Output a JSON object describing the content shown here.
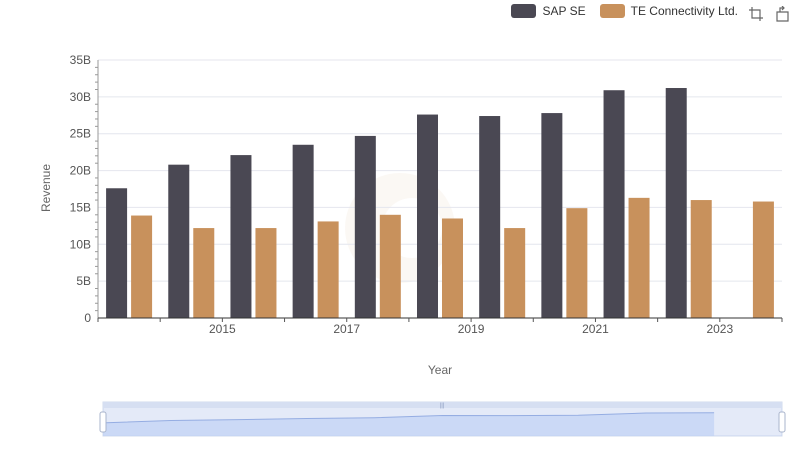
{
  "chart_data": {
    "type": "bar",
    "x": [
      2014,
      2015,
      2016,
      2017,
      2018,
      2019,
      2020,
      2021,
      2022,
      2023,
      2024
    ],
    "x_tick_labels": [
      "2015",
      "2017",
      "2019",
      "2021",
      "2023"
    ],
    "y_tick_labels": [
      "0",
      "5B",
      "10B",
      "15B",
      "20B",
      "25B",
      "30B",
      "35B"
    ],
    "series": [
      {
        "name": "SAP SE",
        "color": "#4a4853",
        "values": [
          17.6,
          20.8,
          22.1,
          23.5,
          24.7,
          27.6,
          27.4,
          27.8,
          30.9,
          31.2,
          null
        ]
      },
      {
        "name": "TE Connectivity Ltd.",
        "color": "#c8915c",
        "values": [
          13.9,
          12.2,
          12.2,
          13.1,
          14.0,
          13.5,
          12.2,
          14.9,
          16.3,
          16.0,
          15.8
        ]
      }
    ],
    "xlabel": "Year",
    "ylabel": "Revenue",
    "ylim": [
      0,
      35
    ],
    "unit": "B",
    "grid": true,
    "legend_position": "top-right"
  },
  "toolbox": {
    "icons": [
      "zoom-icon",
      "restore-icon"
    ]
  }
}
